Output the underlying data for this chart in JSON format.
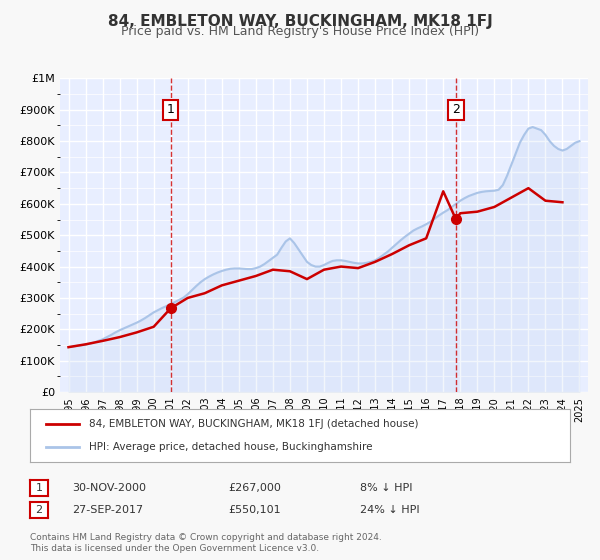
{
  "title": "84, EMBLETON WAY, BUCKINGHAM, MK18 1FJ",
  "subtitle": "Price paid vs. HM Land Registry's House Price Index (HPI)",
  "bg_color": "#f0f4ff",
  "plot_bg_color": "#e8eeff",
  "grid_color": "#ffffff",
  "hpi_color": "#aac4e8",
  "price_color": "#cc0000",
  "vline_color": "#cc0000",
  "sale1_date_x": 2001.0,
  "sale1_price": 267000,
  "sale1_label": "1",
  "sale2_date_x": 2017.75,
  "sale2_price": 550101,
  "sale2_label": "2",
  "ylim_min": 0,
  "ylim_max": 1000000,
  "xlim_min": 1994.5,
  "xlim_max": 2025.5,
  "yticks": [
    0,
    100000,
    200000,
    300000,
    400000,
    500000,
    600000,
    700000,
    800000,
    900000,
    1000000
  ],
  "ytick_labels": [
    "£0",
    "£100K",
    "£200K",
    "£300K",
    "£400K",
    "£500K",
    "£600K",
    "£700K",
    "£800K",
    "£900K",
    "£1M"
  ],
  "xticks": [
    1995,
    1996,
    1997,
    1998,
    1999,
    2000,
    2001,
    2002,
    2003,
    2004,
    2005,
    2006,
    2007,
    2008,
    2009,
    2010,
    2011,
    2012,
    2013,
    2014,
    2015,
    2016,
    2017,
    2018,
    2019,
    2020,
    2021,
    2022,
    2023,
    2024,
    2025
  ],
  "legend_label_price": "84, EMBLETON WAY, BUCKINGHAM, MK18 1FJ (detached house)",
  "legend_label_hpi": "HPI: Average price, detached house, Buckinghamshire",
  "annotation1_text": "1",
  "annotation2_text": "2",
  "table_row1": [
    "1",
    "30-NOV-2000",
    "£267,000",
    "8% ↓ HPI"
  ],
  "table_row2": [
    "2",
    "27-SEP-2017",
    "£550,101",
    "24% ↓ HPI"
  ],
  "footer_text": "Contains HM Land Registry data © Crown copyright and database right 2024.\nThis data is licensed under the Open Government Licence v3.0.",
  "hpi_data_x": [
    1995.0,
    1995.25,
    1995.5,
    1995.75,
    1996.0,
    1996.25,
    1996.5,
    1996.75,
    1997.0,
    1997.25,
    1997.5,
    1997.75,
    1998.0,
    1998.25,
    1998.5,
    1998.75,
    1999.0,
    1999.25,
    1999.5,
    1999.75,
    2000.0,
    2000.25,
    2000.5,
    2000.75,
    2001.0,
    2001.25,
    2001.5,
    2001.75,
    2002.0,
    2002.25,
    2002.5,
    2002.75,
    2003.0,
    2003.25,
    2003.5,
    2003.75,
    2004.0,
    2004.25,
    2004.5,
    2004.75,
    2005.0,
    2005.25,
    2005.5,
    2005.75,
    2006.0,
    2006.25,
    2006.5,
    2006.75,
    2007.0,
    2007.25,
    2007.5,
    2007.75,
    2008.0,
    2008.25,
    2008.5,
    2008.75,
    2009.0,
    2009.25,
    2009.5,
    2009.75,
    2010.0,
    2010.25,
    2010.5,
    2010.75,
    2011.0,
    2011.25,
    2011.5,
    2011.75,
    2012.0,
    2012.25,
    2012.5,
    2012.75,
    2013.0,
    2013.25,
    2013.5,
    2013.75,
    2014.0,
    2014.25,
    2014.5,
    2014.75,
    2015.0,
    2015.25,
    2015.5,
    2015.75,
    2016.0,
    2016.25,
    2016.5,
    2016.75,
    2017.0,
    2017.25,
    2017.5,
    2017.75,
    2018.0,
    2018.25,
    2018.5,
    2018.75,
    2019.0,
    2019.25,
    2019.5,
    2019.75,
    2020.0,
    2020.25,
    2020.5,
    2020.75,
    2021.0,
    2021.25,
    2021.5,
    2021.75,
    2022.0,
    2022.25,
    2022.5,
    2022.75,
    2023.0,
    2023.25,
    2023.5,
    2023.75,
    2024.0,
    2024.25,
    2024.5,
    2024.75,
    2025.0
  ],
  "hpi_data_y": [
    143000,
    145000,
    147000,
    149000,
    151000,
    154000,
    158000,
    163000,
    168000,
    175000,
    182000,
    190000,
    197000,
    203000,
    209000,
    215000,
    221000,
    228000,
    236000,
    245000,
    254000,
    261000,
    268000,
    274000,
    280000,
    287000,
    294000,
    301000,
    312000,
    325000,
    338000,
    350000,
    360000,
    368000,
    375000,
    381000,
    386000,
    390000,
    393000,
    394000,
    394000,
    393000,
    392000,
    392000,
    395000,
    400000,
    408000,
    418000,
    428000,
    438000,
    460000,
    480000,
    490000,
    475000,
    455000,
    435000,
    415000,
    405000,
    400000,
    400000,
    405000,
    412000,
    418000,
    420000,
    420000,
    418000,
    415000,
    412000,
    410000,
    410000,
    412000,
    415000,
    420000,
    428000,
    438000,
    448000,
    460000,
    472000,
    484000,
    495000,
    505000,
    515000,
    522000,
    528000,
    535000,
    543000,
    553000,
    563000,
    572000,
    580000,
    590000,
    600000,
    610000,
    618000,
    625000,
    630000,
    635000,
    638000,
    640000,
    641000,
    642000,
    645000,
    660000,
    690000,
    725000,
    760000,
    795000,
    820000,
    840000,
    845000,
    840000,
    835000,
    820000,
    800000,
    785000,
    775000,
    770000,
    775000,
    785000,
    795000,
    800000
  ],
  "price_data_x": [
    1995.0,
    1996.0,
    1997.0,
    1998.0,
    1999.0,
    2000.0,
    2001.0,
    2002.0,
    2003.0,
    2004.0,
    2005.0,
    2006.0,
    2007.0,
    2008.0,
    2009.0,
    2010.0,
    2011.0,
    2012.0,
    2013.0,
    2014.0,
    2015.0,
    2016.0,
    2017.0,
    2017.75,
    2018.0,
    2019.0,
    2020.0,
    2021.0,
    2022.0,
    2023.0,
    2024.0
  ],
  "price_data_y": [
    143000,
    152000,
    163000,
    175000,
    190000,
    208000,
    267000,
    300000,
    315000,
    340000,
    355000,
    370000,
    390000,
    385000,
    360000,
    390000,
    400000,
    395000,
    415000,
    440000,
    468000,
    490000,
    640000,
    550101,
    570000,
    575000,
    590000,
    620000,
    650000,
    610000,
    605000
  ]
}
